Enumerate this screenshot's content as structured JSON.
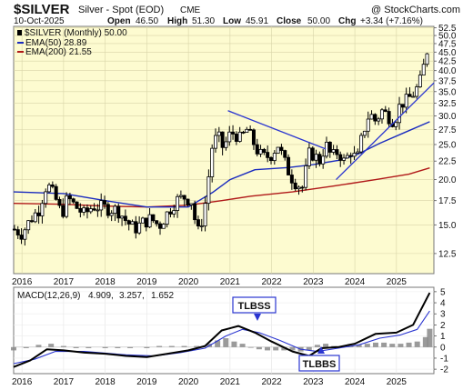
{
  "header": {
    "symbol": "$SILVER",
    "name": "Silver - Spot (EOD)",
    "exchange": "CME",
    "watermark": "@ StockCharts.com",
    "date": "10-Oct-2025",
    "open_label": "Open",
    "open": "46.50",
    "high_label": "High",
    "high": "51.30",
    "low_label": "Low",
    "low": "45.91",
    "close_label": "Close",
    "close": "50.00",
    "chg_label": "Chg",
    "chg": "+3.34 (+7.16%)"
  },
  "legend": {
    "price": "$SILVER (Monthly) 50.00",
    "ema50": "EMA(50) 28.89",
    "ema200": "EMA(200) 21.55"
  },
  "macd_legend": {
    "label": "MACD(12,26,9)",
    "v1": "4.909,",
    "v2": "3.257,",
    "v3": "1.652"
  },
  "annotations": {
    "tlbss": "TLBSS",
    "tlbbs": "TLBBS"
  },
  "colors": {
    "panel_bg": "#fdfbd0",
    "candle": "#000000",
    "ema50": "#1a2bbf",
    "ema200": "#b01818",
    "trendline": "#2a35d0",
    "macd": "#000000",
    "signal": "#2a35d0",
    "hist": "#888888"
  },
  "chart_data": [
    {
      "type": "line",
      "title": "$SILVER (Monthly)",
      "y_scale": "log",
      "ylim": [
        11,
        53
      ],
      "y_ticks": [
        "52.5",
        "50.0",
        "47.5",
        "45.0",
        "42.5",
        "40.0",
        "37.5",
        "35.0",
        "32.5",
        "30.0",
        "27.5",
        "25.0",
        "22.5",
        "20.0",
        "17.5",
        "15.0",
        "12.5"
      ],
      "x_ticks": [
        "2016",
        "2017",
        "2018",
        "2019",
        "2020",
        "2021",
        "2022",
        "2023",
        "2024",
        "2025"
      ],
      "xlim": [
        2015.8,
        2025.9
      ],
      "grid": true,
      "close": [
        [
          2015.8,
          14.6
        ],
        [
          2016.0,
          14.2
        ],
        [
          2016.2,
          15.5
        ],
        [
          2016.4,
          16.5
        ],
        [
          2016.6,
          19.5
        ],
        [
          2016.8,
          17.8
        ],
        [
          2016.95,
          16.0
        ],
        [
          2017.1,
          17.8
        ],
        [
          2017.3,
          16.8
        ],
        [
          2017.5,
          16.0
        ],
        [
          2017.7,
          16.9
        ],
        [
          2017.9,
          16.8
        ],
        [
          2018.1,
          16.6
        ],
        [
          2018.3,
          16.5
        ],
        [
          2018.5,
          15.4
        ],
        [
          2018.7,
          14.6
        ],
        [
          2018.9,
          15.2
        ],
        [
          2019.1,
          15.6
        ],
        [
          2019.3,
          14.9
        ],
        [
          2019.5,
          16.2
        ],
        [
          2019.7,
          17.5
        ],
        [
          2019.9,
          17.9
        ],
        [
          2020.1,
          17.4
        ],
        [
          2020.2,
          14.0
        ],
        [
          2020.3,
          15.0
        ],
        [
          2020.45,
          18.2
        ],
        [
          2020.55,
          24.3
        ],
        [
          2020.7,
          26.5
        ],
        [
          2020.85,
          24.2
        ],
        [
          2020.95,
          26.3
        ],
        [
          2021.1,
          27.0
        ],
        [
          2021.25,
          25.8
        ],
        [
          2021.4,
          27.5
        ],
        [
          2021.55,
          25.5
        ],
        [
          2021.7,
          23.5
        ],
        [
          2021.85,
          23.0
        ],
        [
          2022.0,
          23.5
        ],
        [
          2022.15,
          25.0
        ],
        [
          2022.3,
          22.5
        ],
        [
          2022.45,
          20.5
        ],
        [
          2022.6,
          19.5
        ],
        [
          2022.75,
          19.0
        ],
        [
          2022.9,
          23.5
        ],
        [
          2023.0,
          23.5
        ],
        [
          2023.15,
          22.5
        ],
        [
          2023.3,
          25.0
        ],
        [
          2023.45,
          23.0
        ],
        [
          2023.6,
          24.0
        ],
        [
          2023.75,
          22.3
        ],
        [
          2023.9,
          24.0
        ],
        [
          2024.05,
          22.5
        ],
        [
          2024.2,
          27.0
        ],
        [
          2024.35,
          30.5
        ],
        [
          2024.5,
          29.0
        ],
        [
          2024.65,
          31.0
        ],
        [
          2024.8,
          30.0
        ],
        [
          2024.95,
          29.0
        ],
        [
          2025.1,
          32.5
        ],
        [
          2025.25,
          33.0
        ],
        [
          2025.4,
          34.5
        ],
        [
          2025.55,
          36.5
        ],
        [
          2025.7,
          43.0
        ],
        [
          2025.8,
          50.0
        ]
      ],
      "series": [
        {
          "name": "EMA(50)",
          "values": [
            [
              2015.8,
              18.5
            ],
            [
              2017.0,
              18.3
            ],
            [
              2018.0,
              17.5
            ],
            [
              2019.0,
              16.8
            ],
            [
              2020.0,
              16.8
            ],
            [
              2020.6,
              18.5
            ],
            [
              2021.0,
              20.0
            ],
            [
              2021.6,
              21.3
            ],
            [
              2022.4,
              21.6
            ],
            [
              2023.0,
              22.0
            ],
            [
              2023.6,
              22.6
            ],
            [
              2024.0,
              23.3
            ],
            [
              2024.6,
              25.2
            ],
            [
              2025.2,
              27.0
            ],
            [
              2025.8,
              28.9
            ]
          ]
        },
        {
          "name": "EMA(200)",
          "values": [
            [
              2015.8,
              17.2
            ],
            [
              2017.0,
              17.1
            ],
            [
              2018.0,
              16.9
            ],
            [
              2019.0,
              16.8
            ],
            [
              2020.0,
              17.0
            ],
            [
              2020.8,
              17.5
            ],
            [
              2021.5,
              18.0
            ],
            [
              2022.5,
              18.5
            ],
            [
              2023.5,
              19.2
            ],
            [
              2024.5,
              20.0
            ],
            [
              2025.3,
              20.7
            ],
            [
              2025.8,
              21.55
            ]
          ]
        }
      ],
      "trendlines": [
        {
          "from": [
            2020.95,
            31.0
          ],
          "to": [
            2023.3,
            24.3
          ]
        },
        {
          "from": [
            2023.55,
            20.0
          ],
          "to": [
            2025.9,
            37.0
          ]
        }
      ]
    },
    {
      "type": "line",
      "title": "MACD(12,26,9)",
      "ylim": [
        -2.4,
        5.4
      ],
      "y_ticks": [
        "5",
        "4",
        "3",
        "2",
        "1",
        "0",
        "-1",
        "-2"
      ],
      "x_ticks": [
        "2016",
        "2017",
        "2018",
        "2019",
        "2020",
        "2021",
        "2022",
        "2023",
        "2024",
        "2025"
      ],
      "series": [
        {
          "name": "MACD",
          "values": [
            [
              2015.8,
              -1.8
            ],
            [
              2016.2,
              -1.2
            ],
            [
              2016.6,
              -0.2
            ],
            [
              2017.0,
              -0.3
            ],
            [
              2017.5,
              -0.5
            ],
            [
              2018.0,
              -0.6
            ],
            [
              2018.5,
              -0.8
            ],
            [
              2019.0,
              -0.9
            ],
            [
              2019.5,
              -0.6
            ],
            [
              2020.0,
              -0.3
            ],
            [
              2020.4,
              0.1
            ],
            [
              2020.8,
              1.5
            ],
            [
              2021.2,
              1.9
            ],
            [
              2021.6,
              1.3
            ],
            [
              2022.0,
              0.5
            ],
            [
              2022.5,
              -0.4
            ],
            [
              2022.9,
              -0.8
            ],
            [
              2023.2,
              -0.1
            ],
            [
              2023.6,
              0.0
            ],
            [
              2024.0,
              0.3
            ],
            [
              2024.5,
              1.2
            ],
            [
              2025.0,
              1.3
            ],
            [
              2025.4,
              2.0
            ],
            [
              2025.8,
              4.9
            ]
          ]
        },
        {
          "name": "Signal",
          "values": [
            [
              2015.8,
              -1.5
            ],
            [
              2016.3,
              -1.1
            ],
            [
              2016.8,
              -0.4
            ],
            [
              2017.5,
              -0.4
            ],
            [
              2018.5,
              -0.7
            ],
            [
              2019.2,
              -0.8
            ],
            [
              2019.8,
              -0.5
            ],
            [
              2020.4,
              -0.1
            ],
            [
              2020.9,
              1.0
            ],
            [
              2021.3,
              1.6
            ],
            [
              2021.7,
              1.3
            ],
            [
              2022.2,
              0.6
            ],
            [
              2022.7,
              -0.2
            ],
            [
              2023.1,
              -0.4
            ],
            [
              2023.6,
              -0.1
            ],
            [
              2024.1,
              0.2
            ],
            [
              2024.6,
              0.8
            ],
            [
              2025.1,
              1.1
            ],
            [
              2025.5,
              1.6
            ],
            [
              2025.8,
              3.26
            ]
          ]
        }
      ],
      "histogram": [
        [
          2015.8,
          -0.3
        ],
        [
          2016.1,
          -0.1
        ],
        [
          2016.4,
          0.2
        ],
        [
          2016.7,
          0.3
        ],
        [
          2017.0,
          0.1
        ],
        [
          2017.3,
          -0.1
        ],
        [
          2017.6,
          -0.1
        ],
        [
          2018.0,
          -0.1
        ],
        [
          2018.3,
          -0.1
        ],
        [
          2018.6,
          -0.1
        ],
        [
          2019.0,
          -0.1
        ],
        [
          2019.3,
          0.1
        ],
        [
          2019.6,
          0.1
        ],
        [
          2019.9,
          0.1
        ],
        [
          2020.2,
          0.1
        ],
        [
          2020.5,
          0.3
        ],
        [
          2020.7,
          0.6
        ],
        [
          2020.9,
          0.8
        ],
        [
          2021.1,
          0.5
        ],
        [
          2021.3,
          0.3
        ],
        [
          2021.5,
          0.0
        ],
        [
          2021.7,
          -0.2
        ],
        [
          2021.9,
          -0.3
        ],
        [
          2022.1,
          -0.3
        ],
        [
          2022.3,
          -0.3
        ],
        [
          2022.5,
          -0.3
        ],
        [
          2022.7,
          -0.4
        ],
        [
          2022.9,
          -0.3
        ],
        [
          2023.1,
          0.2
        ],
        [
          2023.3,
          0.3
        ],
        [
          2023.5,
          0.1
        ],
        [
          2023.7,
          0.1
        ],
        [
          2023.9,
          0.1
        ],
        [
          2024.1,
          0.2
        ],
        [
          2024.3,
          0.3
        ],
        [
          2024.5,
          0.4
        ],
        [
          2024.7,
          0.4
        ],
        [
          2024.9,
          0.3
        ],
        [
          2025.1,
          0.3
        ],
        [
          2025.3,
          0.4
        ],
        [
          2025.5,
          0.5
        ],
        [
          2025.7,
          0.9
        ],
        [
          2025.8,
          1.65
        ]
      ]
    }
  ]
}
